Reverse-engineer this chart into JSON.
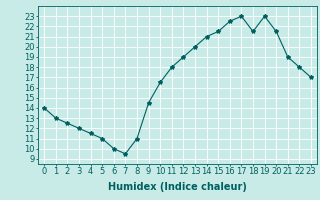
{
  "x": [
    0,
    1,
    2,
    3,
    4,
    5,
    6,
    7,
    8,
    9,
    10,
    11,
    12,
    13,
    14,
    15,
    16,
    17,
    18,
    19,
    20,
    21,
    22,
    23
  ],
  "y": [
    14,
    13,
    12.5,
    12,
    11.5,
    11,
    10,
    9.5,
    11,
    14.5,
    16.5,
    18,
    19,
    20,
    21,
    21.5,
    22.5,
    23,
    21.5,
    23,
    21.5,
    19,
    18,
    17
  ],
  "line_color": "#006060",
  "marker": "*",
  "marker_size": 3,
  "bg_color": "#c8ebe8",
  "grid_color": "#ffffff",
  "xlabel": "Humidex (Indice chaleur)",
  "ylabel_ticks": [
    9,
    10,
    11,
    12,
    13,
    14,
    15,
    16,
    17,
    18,
    19,
    20,
    21,
    22,
    23
  ],
  "xlim": [
    -0.5,
    23.5
  ],
  "ylim": [
    8.5,
    24
  ],
  "axis_label_fontsize": 7,
  "tick_fontsize": 6
}
